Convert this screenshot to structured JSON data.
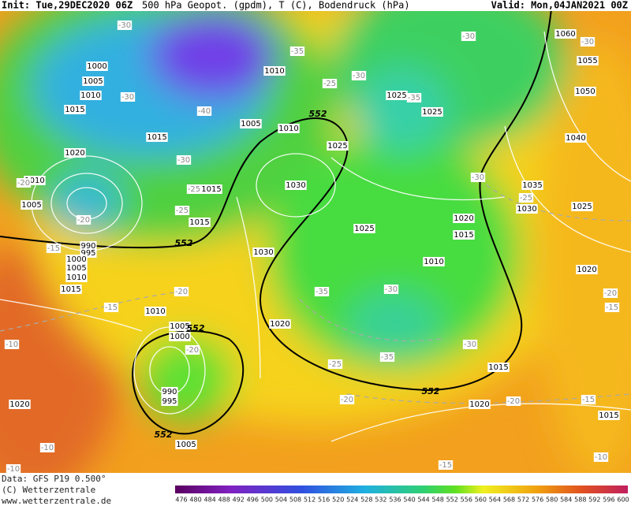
{
  "header": {
    "init": "Init: Tue,29DEC2020 06Z",
    "title": "500 hPa Geopot. (gpdm), T (C), Bodendruck (hPa)",
    "valid": "Valid: Mon,04JAN2021 00Z"
  },
  "footer": {
    "data": "Data: GFS P19 0.500°",
    "copyright": "(C) Wetterzentrale",
    "url": "www.wetterzentrale.de"
  },
  "colorbar": {
    "levels": [
      "476",
      "480",
      "484",
      "488",
      "492",
      "496",
      "500",
      "504",
      "508",
      "512",
      "516",
      "520",
      "524",
      "528",
      "532",
      "536",
      "540",
      "544",
      "548",
      "552",
      "556",
      "560",
      "564",
      "568",
      "572",
      "576",
      "580",
      "584",
      "588",
      "592",
      "596",
      "600"
    ]
  },
  "isobar_labels": [
    "1000",
    "1005",
    "1010",
    "1015",
    "1020",
    "1010",
    "1005",
    "990",
    "995",
    "1000",
    "1005",
    "1010",
    "1015",
    "1010",
    "1005",
    "1000",
    "990",
    "995",
    "1005",
    "1015",
    "1005",
    "1010",
    "1010",
    "1025",
    "1030",
    "1015",
    "1015",
    "1030",
    "1020",
    "1025",
    "1025",
    "1025",
    "1020",
    "1015",
    "1010",
    "1015",
    "1020",
    "1060",
    "1055",
    "1050",
    "1040",
    "1035",
    "1030",
    "1025",
    "1020",
    "1015",
    "1020"
  ],
  "temperature_labels": [
    "-30",
    "-35",
    "-30",
    "-25",
    "-30",
    "-40",
    "-30",
    "-20",
    "-25",
    "-20",
    "-25",
    "-15",
    "-15",
    "-20",
    "-35",
    "-30",
    "-30",
    "-25",
    "-35",
    "-20",
    "-20",
    "-20",
    "-15",
    "-20",
    "-15",
    "-10",
    "-10",
    "-10",
    "-15",
    "-30",
    "-25",
    "-30",
    "-30",
    "-35",
    "-10"
  ],
  "height_labels": [
    "552",
    "552",
    "552",
    "552",
    "552"
  ]
}
